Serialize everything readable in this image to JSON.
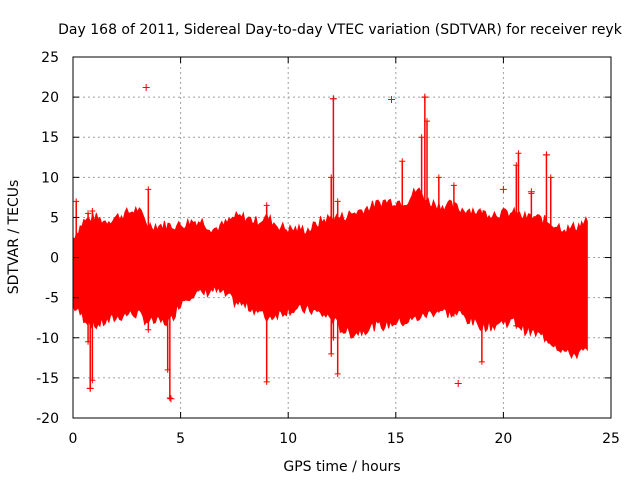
{
  "chart_data": {
    "type": "scatter",
    "title": "Day 168 of 2011, Sidereal Day-to-day VTEC variation (SDTVAR) for receiver reyk",
    "xlabel": "GPS time / hours",
    "ylabel": "SDTVAR / TECUs",
    "xlim": [
      0,
      25
    ],
    "ylim": [
      -20,
      25
    ],
    "xticks": [
      "0",
      "5",
      "10",
      "15",
      "20",
      "25"
    ],
    "yticks": [
      "-20",
      "-15",
      "-10",
      "-5",
      "0",
      "5",
      "10",
      "15",
      "20",
      "25"
    ],
    "grid": true,
    "series": [
      {
        "name": "SDTVAR",
        "color": "#ff0000",
        "marker": "+",
        "envelope": {
          "x": [
            0.0,
            0.5,
            1.0,
            1.5,
            2.0,
            2.5,
            3.0,
            3.5,
            4.0,
            4.5,
            5.0,
            5.5,
            6.0,
            6.5,
            7.0,
            7.5,
            8.0,
            8.5,
            9.0,
            9.5,
            10.0,
            10.5,
            11.0,
            11.5,
            12.0,
            12.5,
            13.0,
            13.5,
            14.0,
            14.5,
            15.0,
            15.5,
            16.0,
            16.5,
            17.0,
            17.5,
            18.0,
            18.5,
            19.0,
            19.5,
            20.0,
            20.5,
            21.0,
            21.5,
            22.0,
            22.5,
            23.0,
            23.5,
            23.9
          ],
          "upper": [
            2.5,
            4.5,
            5.0,
            4.5,
            5.0,
            5.5,
            6.0,
            4.0,
            4.0,
            4.0,
            4.0,
            4.5,
            4.5,
            3.5,
            4.0,
            5.0,
            5.0,
            4.5,
            5.0,
            4.0,
            3.5,
            3.5,
            3.5,
            4.5,
            5.0,
            5.0,
            5.5,
            6.0,
            6.5,
            7.0,
            7.0,
            7.0,
            8.5,
            7.0,
            6.5,
            6.5,
            6.0,
            6.0,
            5.5,
            5.5,
            5.5,
            5.5,
            5.0,
            5.0,
            4.5,
            4.0,
            3.5,
            4.0,
            4.5
          ],
          "lower": [
            -6.0,
            -7.5,
            -8.5,
            -8.0,
            -7.5,
            -7.0,
            -7.0,
            -8.0,
            -8.0,
            -8.0,
            -5.5,
            -4.5,
            -4.5,
            -4.0,
            -4.5,
            -5.5,
            -6.0,
            -6.5,
            -7.5,
            -7.0,
            -6.5,
            -6.5,
            -6.5,
            -7.0,
            -7.5,
            -9.0,
            -9.5,
            -9.0,
            -8.5,
            -8.5,
            -8.0,
            -8.0,
            -7.5,
            -7.0,
            -6.5,
            -7.0,
            -7.0,
            -8.0,
            -8.5,
            -8.5,
            -8.0,
            -8.0,
            -9.0,
            -9.5,
            -10.0,
            -11.0,
            -12.0,
            -12.0,
            -11.5
          ]
        },
        "spikes": [
          {
            "x": 0.15,
            "from": -6.0,
            "to": 7.0
          },
          {
            "x": 0.7,
            "from": -10.5,
            "to": 5.5
          },
          {
            "x": 0.8,
            "from": -16.3,
            "to": -7.0
          },
          {
            "x": 0.9,
            "from": -15.3,
            "to": 5.8
          },
          {
            "x": 3.5,
            "from": -9.0,
            "to": 8.5
          },
          {
            "x": 4.5,
            "from": -17.5,
            "to": -7.0
          },
          {
            "x": 4.4,
            "from": -14.0,
            "to": -6.0
          },
          {
            "x": 9.0,
            "from": -15.5,
            "to": 6.5
          },
          {
            "x": 12.0,
            "from": -12.0,
            "to": 10.0
          },
          {
            "x": 12.1,
            "from": -10.0,
            "to": 19.8
          },
          {
            "x": 12.3,
            "from": -14.5,
            "to": 7.0
          },
          {
            "x": 15.3,
            "from": -6.0,
            "to": 12.0
          },
          {
            "x": 16.2,
            "from": -5.0,
            "to": 15.0
          },
          {
            "x": 16.35,
            "from": -7.0,
            "to": 20.0
          },
          {
            "x": 16.45,
            "from": -6.0,
            "to": 17.0
          },
          {
            "x": 17.0,
            "from": -6.5,
            "to": 10.0
          },
          {
            "x": 17.7,
            "from": -7.0,
            "to": 9.0
          },
          {
            "x": 19.0,
            "from": -13.0,
            "to": 5.5
          },
          {
            "x": 20.6,
            "from": -8.5,
            "to": 11.5
          },
          {
            "x": 20.7,
            "from": -8.0,
            "to": 13.0
          },
          {
            "x": 22.0,
            "from": -10.0,
            "to": 12.8
          },
          {
            "x": 22.2,
            "from": -10.5,
            "to": 10.0
          },
          {
            "x": 21.3,
            "from": -9.0,
            "to": 8.0
          }
        ],
        "points": [
          {
            "x": 3.4,
            "y": 21.2
          },
          {
            "x": 14.8,
            "y": 19.7
          },
          {
            "x": 0.8,
            "y": -16.3
          },
          {
            "x": 4.55,
            "y": -17.6
          },
          {
            "x": 17.9,
            "y": -15.7
          },
          {
            "x": 12.1,
            "y": 19.8
          },
          {
            "x": 16.35,
            "y": 20.0
          },
          {
            "x": 20.0,
            "y": 8.5
          },
          {
            "x": 21.3,
            "y": 8.2
          },
          {
            "x": 22.0,
            "y": 12.8
          }
        ]
      }
    ]
  }
}
